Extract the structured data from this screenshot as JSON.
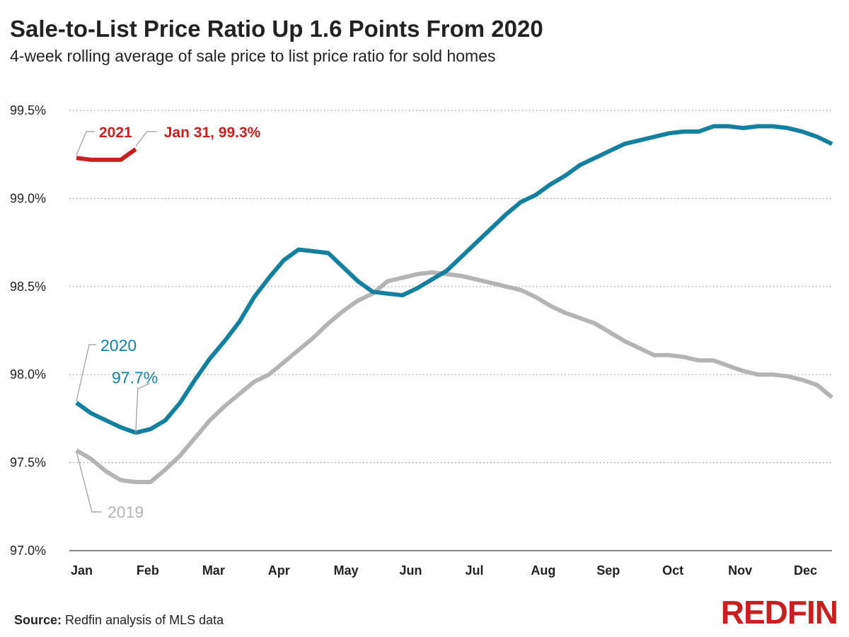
{
  "title": "Sale-to-List Price Ratio Up 1.6 Points From 2020",
  "subtitle": "4-week rolling average of sale price to list price ratio for sold homes",
  "source_label": "Source:",
  "source_text": " Redfin analysis of MLS data",
  "logo_text": "REDFIN",
  "colors": {
    "y2019": "#b4b4b4",
    "y2020": "#14809f",
    "y2021": "#c82021",
    "grid": "#999999"
  },
  "chart_data": {
    "type": "line",
    "title": "Sale-to-List Price Ratio Up 1.6 Points From 2020",
    "subtitle": "4-week rolling average of sale price to list price ratio for sold homes",
    "xlabel": "",
    "ylabel": "",
    "ylim": [
      97.0,
      99.5
    ],
    "x_range_weeks": [
      0,
      51
    ],
    "yticks": [
      97.0,
      97.5,
      98.0,
      98.5,
      99.0,
      99.5
    ],
    "ytick_labels": [
      "97.0%",
      "97.5%",
      "98.0%",
      "98.5%",
      "99.0%",
      "99.5%"
    ],
    "xtick_labels": [
      "Jan",
      "Feb",
      "Mar",
      "Apr",
      "May",
      "Jun",
      "Jul",
      "Aug",
      "Sep",
      "Oct",
      "Nov",
      "Dec"
    ],
    "grid": "horizontal-dotted",
    "series": [
      {
        "name": "2019",
        "values": [
          97.57,
          97.52,
          97.45,
          97.4,
          97.39,
          97.39,
          97.46,
          97.54,
          97.64,
          97.74,
          97.82,
          97.89,
          97.96,
          98.0,
          98.07,
          98.14,
          98.21,
          98.29,
          98.36,
          98.42,
          98.46,
          98.53,
          98.55,
          98.57,
          98.58,
          98.57,
          98.56,
          98.54,
          98.52,
          98.5,
          98.48,
          98.44,
          98.39,
          98.35,
          98.32,
          98.29,
          98.24,
          98.19,
          98.15,
          98.11,
          98.11,
          98.1,
          98.08,
          98.08,
          98.05,
          98.02,
          98.0,
          98.0,
          97.99,
          97.97,
          97.94,
          97.87
        ]
      },
      {
        "name": "2020",
        "values": [
          97.84,
          97.78,
          97.74,
          97.7,
          97.67,
          97.69,
          97.74,
          97.84,
          97.97,
          98.09,
          98.19,
          98.3,
          98.44,
          98.55,
          98.65,
          98.71,
          98.7,
          98.69,
          98.61,
          98.53,
          98.47,
          98.46,
          98.45,
          98.49,
          98.54,
          98.59,
          98.67,
          98.75,
          98.83,
          98.91,
          98.98,
          99.02,
          99.08,
          99.13,
          99.19,
          99.23,
          99.27,
          99.31,
          99.33,
          99.35,
          99.37,
          99.38,
          99.38,
          99.41,
          99.41,
          99.4,
          99.41,
          99.41,
          99.4,
          99.38,
          99.35,
          99.31
        ]
      },
      {
        "name": "2021",
        "values": [
          99.23,
          99.22,
          99.22,
          99.22,
          99.28
        ]
      }
    ],
    "annotations": [
      {
        "text": "2021",
        "series": "2021"
      },
      {
        "text": "Jan 31, 99.3%",
        "series": "2021",
        "week": 4,
        "value": 99.3
      },
      {
        "text": "2020",
        "series": "2020"
      },
      {
        "text": "97.7%",
        "series": "2020",
        "week": 4,
        "value": 97.7
      },
      {
        "text": "2019",
        "series": "2019"
      }
    ]
  }
}
